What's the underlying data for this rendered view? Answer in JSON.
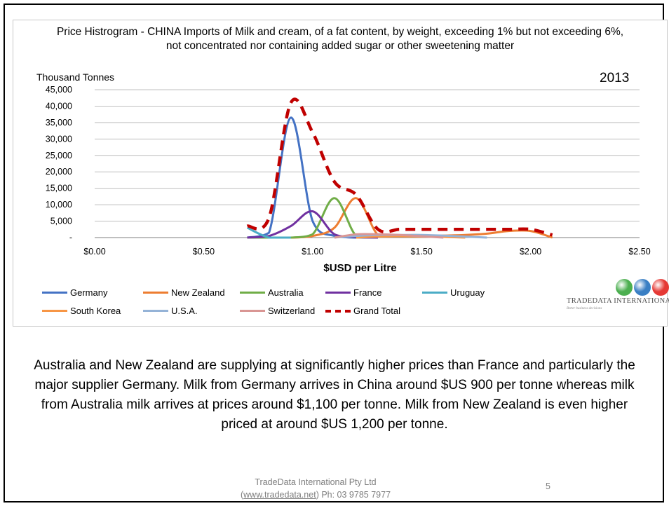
{
  "slide": {
    "body_text": "Australia and New Zealand are supplying at significantly higher prices than France and particularly the major supplier Germany. Milk from Germany arrives in China around $US 900 per tonne whereas milk from Australia milk arrives at prices around $1,100 per tonne. Milk from New Zealand is even higher priced at around $US 1,200 per tonne.",
    "footer_company": "TradeData International Pty Ltd",
    "footer_paren_open": "(",
    "footer_link": "www.tradedata.net",
    "footer_phone": ") Ph: 03 9785 7977",
    "page_number": "5"
  },
  "logo": {
    "name": "TRADEDATA INTERNATIONAL",
    "tagline": "Better business decisions",
    "globe_colors": [
      "#4caf50",
      "#3a7fc4",
      "#e53935"
    ]
  },
  "chart_data": {
    "type": "line",
    "title_line1": "Price Histrogram - CHINA Imports of Milk and cream, of a fat content, by weight, exceeding 1% but not exceeding 6%,",
    "title_line2": "not concentrated nor containing added sugar or other sweetening matter",
    "ylabel": "Thousand Tonnes",
    "xlabel": "$USD  per Litre",
    "year": "2013",
    "xlim": [
      0,
      2.5
    ],
    "ylim": [
      0,
      45000
    ],
    "x_tick_labels": [
      "$0.00",
      "$0.50",
      "$1.00",
      "$1.50",
      "$2.00",
      "$2.50"
    ],
    "x_ticks": [
      0,
      0.5,
      1.0,
      1.5,
      2.0,
      2.5
    ],
    "y_tick_labels": [
      "-",
      "5,000",
      "10,000",
      "15,000",
      "20,000",
      "25,000",
      "30,000",
      "35,000",
      "40,000",
      "45,000"
    ],
    "y_ticks": [
      0,
      5000,
      10000,
      15000,
      20000,
      25000,
      30000,
      35000,
      40000,
      45000
    ],
    "grid": true,
    "legend_position": "bottom",
    "series": [
      {
        "name": "Germany",
        "color": "#4472c4",
        "dashed": false,
        "x": [
          0.7,
          0.8,
          0.9,
          1.0,
          1.1,
          1.2,
          1.3
        ],
        "y": [
          0,
          1500,
          36500,
          5000,
          500,
          0,
          0
        ]
      },
      {
        "name": "New Zealand",
        "color": "#ed7d31",
        "dashed": false,
        "x": [
          0.7,
          0.8,
          0.9,
          1.0,
          1.1,
          1.2,
          1.3,
          1.4,
          1.5,
          1.6,
          1.7,
          1.8,
          1.9,
          2.0,
          2.1
        ],
        "y": [
          0,
          0,
          0,
          500,
          3000,
          12000,
          800,
          500,
          500,
          600,
          800,
          1200,
          2000,
          2000,
          0
        ]
      },
      {
        "name": "Australia",
        "color": "#70ad47",
        "dashed": false,
        "x": [
          0.7,
          0.8,
          0.9,
          1.0,
          1.1,
          1.2,
          1.3
        ],
        "y": [
          0,
          0,
          0,
          1000,
          12000,
          500,
          0
        ]
      },
      {
        "name": "France",
        "color": "#7030a0",
        "dashed": false,
        "x": [
          0.7,
          0.8,
          0.9,
          1.0,
          1.1,
          1.2,
          1.3
        ],
        "y": [
          0,
          500,
          3500,
          8000,
          1000,
          200,
          0
        ]
      },
      {
        "name": "Uruguay",
        "color": "#4bacc6",
        "dashed": false,
        "x": [
          0.7,
          0.8,
          0.9
        ],
        "y": [
          3000,
          0,
          0
        ]
      },
      {
        "name": "South Korea",
        "color": "#f79646",
        "dashed": false,
        "x": [
          1.2,
          1.3,
          1.4,
          1.5,
          1.6,
          1.7
        ],
        "y": [
          0,
          300,
          400,
          300,
          200,
          0
        ]
      },
      {
        "name": "U.S.A.",
        "color": "#95b3d7",
        "dashed": false,
        "x": [
          1.1,
          1.2,
          1.3,
          1.4,
          1.5,
          1.6,
          1.7,
          1.8
        ],
        "y": [
          0,
          500,
          800,
          800,
          800,
          600,
          300,
          0
        ]
      },
      {
        "name": "Switzerland",
        "color": "#d99694",
        "dashed": false,
        "x": [
          1.1,
          1.2,
          1.3,
          1.4,
          1.5,
          1.6
        ],
        "y": [
          0,
          1000,
          1000,
          800,
          400,
          0
        ]
      },
      {
        "name": "Grand Total",
        "color": "#c00000",
        "dashed": true,
        "x": [
          0.7,
          0.8,
          0.9,
          1.0,
          1.1,
          1.2,
          1.3,
          1.4,
          1.5,
          1.6,
          1.7,
          1.8,
          1.9,
          2.0,
          2.1
        ],
        "y": [
          3500,
          6000,
          41000,
          32000,
          17000,
          13000,
          2500,
          2500,
          2500,
          2500,
          2500,
          2500,
          2500,
          2500,
          800
        ]
      }
    ]
  }
}
